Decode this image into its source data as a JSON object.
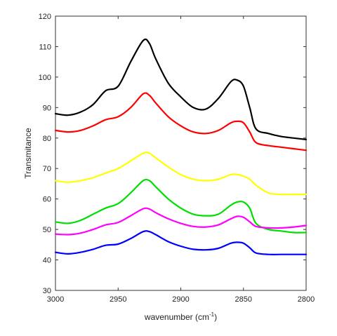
{
  "chart_data": {
    "type": "line",
    "title": "",
    "xlabel": "wavenumber (cm",
    "xlabel_sup": "-1",
    "xlabel_close": ")",
    "ylabel": "Transmitance",
    "xlim": [
      3000,
      2800
    ],
    "ylim": [
      30,
      120
    ],
    "x_reversed": true,
    "grid": false,
    "legend": "none",
    "x_ticks": [
      3000,
      2950,
      2900,
      2850,
      2800
    ],
    "y_ticks": [
      30,
      40,
      50,
      60,
      70,
      80,
      90,
      100,
      110,
      120
    ],
    "series": [
      {
        "color": "#000000",
        "x": [
          3000,
          2990,
          2980,
          2970,
          2960,
          2950,
          2940,
          2930,
          2925,
          2920,
          2910,
          2900,
          2890,
          2880,
          2870,
          2860,
          2855,
          2850,
          2845,
          2840,
          2830,
          2820,
          2810,
          2800
        ],
        "y": [
          88,
          87.5,
          88.5,
          91,
          95.5,
          97,
          105,
          112,
          111,
          106,
          98,
          93.5,
          90,
          89.5,
          93,
          98.5,
          99,
          97,
          90,
          83,
          81.5,
          80.5,
          80,
          79.5
        ]
      },
      {
        "color": "#ff0000",
        "x": [
          3000,
          2990,
          2980,
          2970,
          2960,
          2950,
          2940,
          2930,
          2925,
          2920,
          2910,
          2900,
          2890,
          2880,
          2870,
          2860,
          2855,
          2850,
          2845,
          2840,
          2830,
          2820,
          2810,
          2800
        ],
        "y": [
          82.5,
          82,
          82.5,
          84,
          86,
          87,
          90,
          94.5,
          94,
          91.5,
          87,
          84,
          82,
          81.5,
          82.5,
          85,
          85.5,
          85,
          82,
          78.5,
          77.5,
          77,
          76.5,
          76
        ]
      },
      {
        "color": "#ffff00",
        "x": [
          3000,
          2990,
          2980,
          2970,
          2960,
          2950,
          2940,
          2930,
          2925,
          2920,
          2910,
          2900,
          2890,
          2880,
          2870,
          2860,
          2855,
          2850,
          2845,
          2840,
          2830,
          2820,
          2810,
          2800
        ],
        "y": [
          66,
          65.5,
          66,
          67,
          68.5,
          70,
          72.5,
          75,
          75,
          73.5,
          70.5,
          68,
          66.5,
          66,
          66.5,
          68,
          68,
          67.5,
          66.5,
          64.5,
          62,
          61.5,
          61.5,
          61.5
        ]
      },
      {
        "color": "#00dd00",
        "x": [
          3000,
          2990,
          2980,
          2970,
          2960,
          2950,
          2940,
          2930,
          2925,
          2920,
          2910,
          2900,
          2890,
          2880,
          2870,
          2860,
          2855,
          2850,
          2845,
          2840,
          2830,
          2820,
          2810,
          2800
        ],
        "y": [
          52.5,
          52,
          53,
          55,
          57,
          58.5,
          62,
          66,
          66,
          64,
          60,
          57,
          55,
          54.5,
          55,
          58,
          59,
          59,
          57,
          52,
          50,
          49.5,
          49,
          49
        ]
      },
      {
        "color": "#ff00ff",
        "x": [
          3000,
          2990,
          2980,
          2970,
          2960,
          2950,
          2940,
          2930,
          2925,
          2920,
          2910,
          2900,
          2890,
          2880,
          2870,
          2860,
          2855,
          2850,
          2845,
          2840,
          2830,
          2820,
          2810,
          2800
        ],
        "y": [
          48.5,
          48.3,
          48.8,
          50,
          51.5,
          52.3,
          54.5,
          56.8,
          56.7,
          55.5,
          53.5,
          52,
          51,
          50.8,
          51.5,
          53.5,
          54.3,
          54,
          52.5,
          51,
          50.5,
          50.5,
          50.8,
          51.3
        ]
      },
      {
        "color": "#0000ff",
        "x": [
          3000,
          2990,
          2980,
          2970,
          2960,
          2950,
          2940,
          2930,
          2925,
          2920,
          2910,
          2900,
          2890,
          2880,
          2870,
          2860,
          2855,
          2850,
          2845,
          2840,
          2830,
          2820,
          2810,
          2800
        ],
        "y": [
          42.5,
          42,
          42.5,
          43.5,
          44.8,
          45.2,
          47,
          49.3,
          49.3,
          48.3,
          46,
          44.5,
          43.5,
          43.3,
          43.8,
          45.5,
          45.8,
          45.5,
          44,
          42.3,
          41.8,
          41.8,
          41.8,
          41.8
        ]
      }
    ]
  }
}
